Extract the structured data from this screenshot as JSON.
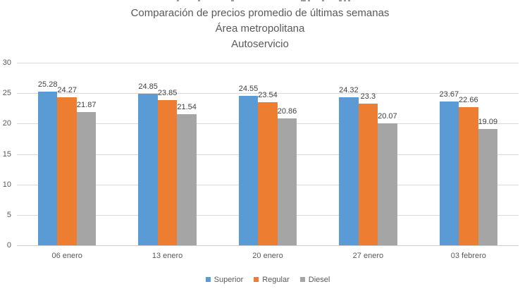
{
  "title": {
    "line1": "Comparación de precios promedio de últimas semanas",
    "line2": "Área metropolitana",
    "line3": "Autoservicio"
  },
  "chart_data": {
    "type": "bar",
    "title": "Comparación de precios promedio de últimas semanas / Área metropolitana / Autoservicio",
    "categories": [
      "06 enero",
      "13 enero",
      "20 enero",
      "27 enero",
      "03 febrero"
    ],
    "series": [
      {
        "name": "Superior",
        "color": "#5B9BD5",
        "values": [
          25.28,
          24.85,
          24.55,
          24.32,
          23.67
        ]
      },
      {
        "name": "Regular",
        "color": "#ED7D31",
        "values": [
          24.27,
          23.85,
          23.54,
          23.3,
          22.66
        ]
      },
      {
        "name": "Diesel",
        "color": "#A5A5A5",
        "values": [
          21.87,
          21.54,
          20.86,
          20.07,
          19.09
        ]
      }
    ],
    "xlabel": "",
    "ylabel": "",
    "ylim": [
      0,
      30
    ],
    "y_ticks": [
      0,
      5,
      10,
      15,
      20,
      25,
      30
    ],
    "grid": true,
    "data_labels": true,
    "legend_position": "bottom"
  },
  "colors": {
    "text_muted": "#595959",
    "data_label": "#404040",
    "gridline": "#d9d9d9",
    "background": "#ffffff"
  }
}
